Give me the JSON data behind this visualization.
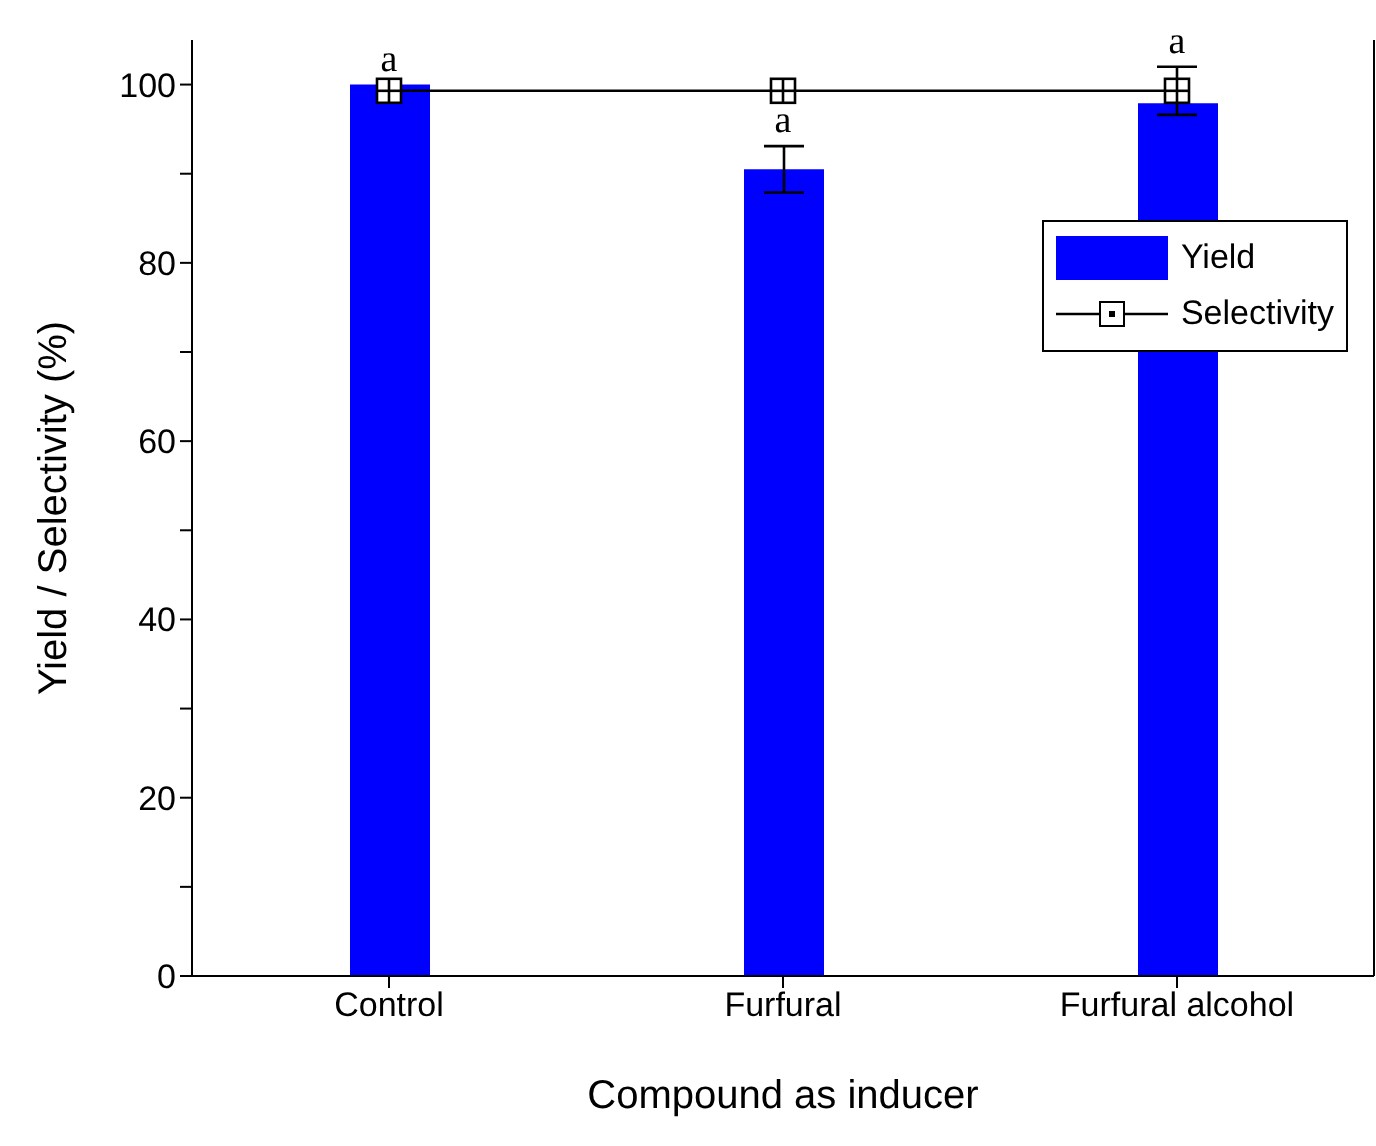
{
  "chart_data": {
    "type": "bar",
    "xlabel": "Compound as inducer",
    "ylabel": "Yield / Selectivity (%)",
    "categories": [
      "Control",
      "Furfural",
      "Furfural alcohol"
    ],
    "series": [
      {
        "name": "Yield",
        "color": "#0000ff",
        "values": [
          100,
          90.5,
          97.9
        ],
        "errors": [
          null,
          2.6,
          null
        ]
      },
      {
        "name": "Selectivity",
        "type": "line",
        "color": "#000000",
        "values": [
          99.3,
          99.3,
          99.3
        ],
        "errors": [
          null,
          null,
          2.7
        ],
        "marker": "square",
        "line_style": "solid"
      }
    ],
    "ylim": [
      0,
      105
    ],
    "yticks": [
      0,
      {
        "value": 10,
        "label": null
      },
      20,
      {
        "value": 30,
        "label": null
      },
      40,
      {
        "value": 50,
        "label": null
      },
      60,
      {
        "value": 70,
        "label": null
      },
      80,
      {
        "value": 90,
        "label": null
      },
      100
    ],
    "annotations": [
      {
        "text": "a",
        "x": "Control",
        "y": 100
      },
      {
        "text": "a",
        "x": "Furfural",
        "y": 93.1
      },
      {
        "text": "a",
        "x": "Furfural alcohol",
        "y": 102
      }
    ],
    "grid": false,
    "legend": "top right"
  }
}
